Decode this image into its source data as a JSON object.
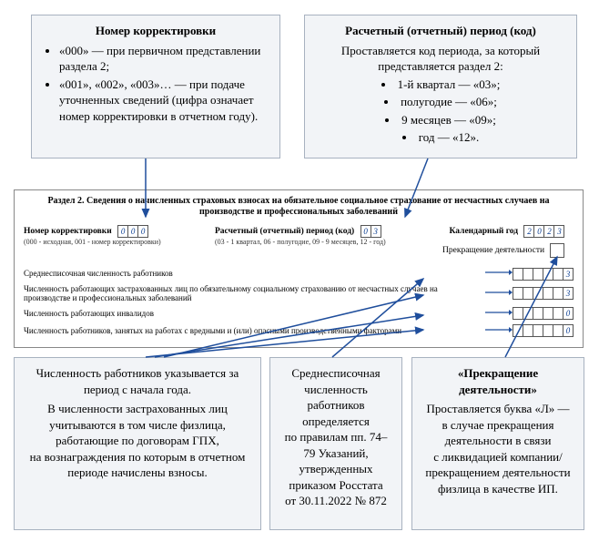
{
  "colors": {
    "box_bg": "#f2f4f7",
    "box_border": "#a8b2c0",
    "arrow": "#1f4e9c",
    "value_color": "#0a3d91"
  },
  "boxes": {
    "korrekt": {
      "title": "Номер корректировки",
      "items": [
        "«000» — при первичном представлении раздела 2;",
        "«001», «002», «003»… — при подаче уточненных сведений (цифра означает номер корректировки в отчетном году)."
      ]
    },
    "period": {
      "title": "Расчетный (отчетный) период (код)",
      "lead": "Проставляется код периода, за который представляется раздел 2:",
      "items": [
        "1-й квартал — «03»;",
        "полугодие — «06»;",
        "9 месяцев — «09»;",
        "год — «12»."
      ]
    },
    "chisl": {
      "p1": "Численность работников указывается за период с начала года.",
      "p2": "В численности застрахованных лиц учитываются в том числе физлица, работающие по договорам ГПХ, на вознаграждения по которым в отчетном периоде начислены взносы."
    },
    "sredne": {
      "text": "Среднесписочная численность работников определяется по правилам пп. 74–79 Указаний, утвержденных приказом Росстата от 30.11.2022 № 872"
    },
    "prekr": {
      "title": "«Прекращение деятельности»",
      "text": "Проставляется буква «Л» — в случае прекращения деятельности в связи с ликвидацией компании/прекращением деятельности физлица в качестве ИП."
    }
  },
  "form": {
    "title": "Раздел 2. Сведения о начисленных страховых взносах на обязательное социальное страхование от несчастных случаев на производстве и профессиональных заболеваний",
    "korrekt_label": "Номер корректировки",
    "korrekt_sub": "(000 - исходная, 001 - номер корректировки)",
    "korrekt_value": [
      "0",
      "0",
      "0"
    ],
    "period_label": "Расчетный (отчетный) период (код)",
    "period_sub": "(03 - 1 квартал, 06 - полугодие, 09 - 9 месяцев, 12 - год)",
    "period_value": [
      "0",
      "3"
    ],
    "year_label": "Календарный год",
    "year_value": [
      "2",
      "0",
      "2",
      "3"
    ],
    "prekr_label": "Прекращение деятельности",
    "rows": [
      {
        "label": "Среднесписочная численность работников",
        "value": [
          "",
          "",
          "",
          "",
          "",
          "3"
        ]
      },
      {
        "label": "Численность работающих застрахованных лиц по обязательному социальному страхованию от несчастных случаев на производстве и профессиональных заболеваний",
        "value": [
          "",
          "",
          "",
          "",
          "",
          "3"
        ]
      },
      {
        "label": "Численность работающих инвалидов",
        "value": [
          "",
          "",
          "",
          "",
          "",
          "0"
        ]
      },
      {
        "label": "Численность работников, занятых на работах с вредными и (или) опасными производственными факторами",
        "value": [
          "",
          "",
          "",
          "",
          "",
          "0"
        ]
      }
    ]
  }
}
